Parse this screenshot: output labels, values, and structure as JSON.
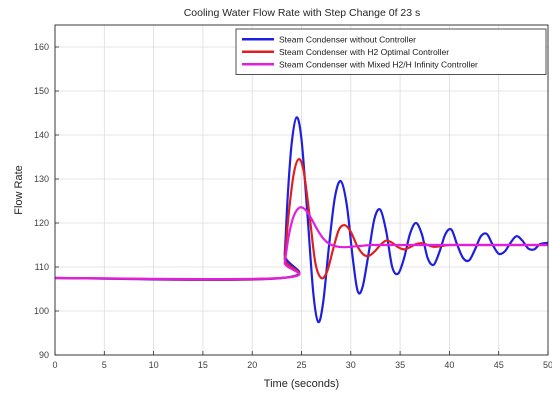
{
  "chart_data": {
    "type": "line",
    "title": "Cooling Water Flow Rate with Step Change 0f 23 s",
    "xlabel": "Time (seconds)",
    "ylabel": "Flow Rate",
    "xlim": [
      0,
      50
    ],
    "ylim": [
      90,
      165
    ],
    "xticks": [
      0,
      5,
      10,
      15,
      20,
      25,
      30,
      35,
      40,
      45,
      50
    ],
    "yticks": [
      90,
      100,
      110,
      120,
      130,
      140,
      150,
      160
    ],
    "grid": true,
    "legend_position": "top-right",
    "series": [
      {
        "name": "Steam Condenser without Controller",
        "color": "#1f1fe0",
        "x": [
          0,
          23,
          23.3,
          23.6,
          24.0,
          24.5,
          25.0,
          25.6,
          26.2,
          26.7,
          27.2,
          27.8,
          28.4,
          29.0,
          29.6,
          30.2,
          30.7,
          31.2,
          31.8,
          32.4,
          33.0,
          33.6,
          34.2,
          34.8,
          35.4,
          36.0,
          36.6,
          37.2,
          37.8,
          38.4,
          39.0,
          39.6,
          40.2,
          40.8,
          41.4,
          42.0,
          42.6,
          43.2,
          43.8,
          44.4,
          45.0,
          45.6,
          46.2,
          46.8,
          47.4,
          48.0,
          48.6,
          49.2,
          50
        ],
        "y": [
          107.5,
          107.5,
          113,
          126,
          138,
          144,
          139,
          122,
          104,
          97.5,
          102,
          115,
          126,
          129.5,
          124,
          112,
          104.5,
          105.5,
          113,
          121,
          123,
          118,
          110,
          108.5,
          112,
          117.5,
          120,
          117.5,
          112,
          110.5,
          113.5,
          117.5,
          118.5,
          115,
          112,
          111.5,
          114,
          117,
          117.5,
          115,
          113,
          113.5,
          115.5,
          117,
          116,
          114.2,
          114,
          115.2,
          115.5
        ]
      },
      {
        "name": "Steam Condenser with H2 Optimal Controller",
        "color": "#e01f1f",
        "x": [
          0,
          23,
          23.3,
          23.7,
          24.2,
          24.7,
          25.2,
          25.8,
          26.4,
          27.0,
          27.6,
          28.2,
          28.8,
          29.4,
          30.0,
          30.6,
          31.2,
          31.8,
          32.4,
          33.0,
          33.6,
          34.2,
          34.8,
          35.4,
          36.0,
          36.6,
          37.2,
          37.8,
          38.4,
          39.0,
          40,
          42,
          45,
          50
        ],
        "y": [
          107.5,
          107.5,
          112,
          122,
          131,
          134.5,
          132,
          122,
          111,
          107.5,
          109,
          114,
          118.5,
          119.5,
          118,
          115,
          113,
          112.5,
          113.5,
          115,
          116,
          115.5,
          114.5,
          114,
          114.5,
          115.2,
          115.4,
          115,
          114.6,
          114.7,
          115,
          115,
          115,
          115
        ]
      },
      {
        "name": "Steam Condenser with Mixed H2/H Infinity Controller",
        "color": "#e01fe0",
        "x": [
          0,
          23,
          23.3,
          23.7,
          24.2,
          24.8,
          25.4,
          26.0,
          26.6,
          27.2,
          27.8,
          28.5,
          29.2,
          30.0,
          31.0,
          32.0,
          33.0,
          34.0,
          35.0,
          36.0,
          38.0,
          40.0,
          44.0,
          50
        ],
        "y": [
          107.5,
          107.5,
          111,
          117,
          121.5,
          123.5,
          123,
          121,
          118.5,
          116.5,
          115.3,
          114.7,
          114.5,
          114.6,
          114.8,
          115,
          115,
          115,
          115,
          115,
          115,
          115,
          115,
          115
        ]
      }
    ]
  }
}
